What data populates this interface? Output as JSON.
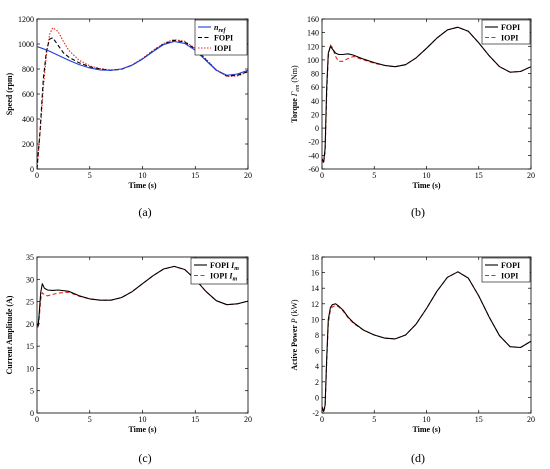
{
  "figure": {
    "captions": [
      "(a)",
      "(b)",
      "(c)",
      "(d)"
    ]
  },
  "colors": {
    "ref": "#1f3fd6",
    "fopi": "#000000",
    "iopi": "#e8261e"
  },
  "chart_data": [
    {
      "type": "line",
      "xlabel": "Time (s)",
      "ylabel": "Speed  (rpm)",
      "xlim": [
        0,
        20
      ],
      "ylim": [
        0,
        1200
      ],
      "xticks": [
        0,
        5,
        10,
        15,
        20
      ],
      "yticks": [
        0,
        200,
        400,
        600,
        800,
        1000,
        1200
      ],
      "grid": false,
      "legend_position": "top-right",
      "series": [
        {
          "name": "n_ref",
          "label_main": "n",
          "label_sub": "ref",
          "style": "solid",
          "color": "#1f3fd6",
          "x": [
            0,
            1,
            2,
            3,
            4,
            5,
            6,
            7,
            8,
            9,
            10,
            11,
            12,
            13,
            14,
            15,
            16,
            17,
            18,
            19,
            20
          ],
          "y": [
            980,
            950,
            910,
            870,
            835,
            808,
            793,
            790,
            800,
            830,
            880,
            940,
            995,
            1020,
            1005,
            950,
            870,
            790,
            750,
            760,
            790
          ]
        },
        {
          "name": "FOPI",
          "label_main": "FOPI",
          "style": "dashed",
          "color": "#000000",
          "x": [
            0,
            0.3,
            0.6,
            0.9,
            1.2,
            1.5,
            2,
            2.5,
            3,
            4,
            5,
            6,
            7,
            8,
            9,
            10,
            11,
            12,
            13,
            14,
            15,
            16,
            17,
            18,
            19,
            20
          ],
          "y": [
            0,
            320,
            720,
            950,
            1040,
            1050,
            990,
            930,
            895,
            850,
            818,
            800,
            790,
            798,
            830,
            880,
            945,
            1000,
            1030,
            1015,
            960,
            875,
            790,
            745,
            750,
            780
          ]
        },
        {
          "name": "IOPI",
          "label_main": "IOPI",
          "style": "dotted",
          "color": "#e8261e",
          "x": [
            0,
            0.3,
            0.6,
            0.9,
            1.2,
            1.5,
            2,
            2.5,
            3,
            4,
            5,
            6,
            7,
            8,
            9,
            10,
            11,
            12,
            13,
            14,
            15,
            16,
            17,
            18,
            19,
            20
          ],
          "y": [
            0,
            300,
            650,
            920,
            1080,
            1130,
            1100,
            1020,
            950,
            870,
            825,
            803,
            792,
            800,
            832,
            885,
            950,
            1005,
            1035,
            1022,
            965,
            880,
            795,
            740,
            745,
            775
          ]
        }
      ]
    },
    {
      "type": "line",
      "xlabel": "Time (s)",
      "ylabel_parts": [
        "Torque",
        "Γ",
        "em",
        "(Nm)"
      ],
      "xlim": [
        0,
        20
      ],
      "ylim": [
        -60,
        160
      ],
      "xticks": [
        0,
        5,
        10,
        15,
        20
      ],
      "yticks": [
        -60,
        -40,
        -20,
        0,
        20,
        40,
        60,
        80,
        100,
        120,
        140,
        160
      ],
      "grid": false,
      "legend_position": "top-right",
      "series": [
        {
          "name": "FOPI",
          "label_main": "FOPI",
          "style": "solid",
          "color": "#000000",
          "x": [
            0,
            0.15,
            0.3,
            0.45,
            0.6,
            0.8,
            1.0,
            1.3,
            1.6,
            2,
            2.5,
            3,
            4,
            5,
            6,
            7,
            8,
            9,
            10,
            11,
            12,
            13,
            14,
            15,
            16,
            17,
            18,
            19,
            20
          ],
          "y": [
            -45,
            -50,
            -30,
            60,
            110,
            120,
            116,
            110,
            108,
            108,
            109,
            107,
            101,
            96,
            92,
            90,
            93,
            103,
            117,
            132,
            144,
            148,
            142,
            125,
            106,
            90,
            82,
            83,
            90
          ]
        },
        {
          "name": "IOPI",
          "label_main": "IOPI",
          "style": "dashed",
          "color": "#e8261e",
          "x": [
            0,
            0.15,
            0.3,
            0.45,
            0.6,
            0.8,
            1.0,
            1.3,
            1.6,
            2,
            2.5,
            3,
            4,
            5,
            6,
            7,
            8,
            9,
            10,
            11,
            12,
            13,
            14,
            15,
            16,
            17,
            18,
            19,
            20
          ],
          "y": [
            -45,
            -52,
            -35,
            50,
            105,
            122,
            118,
            105,
            98,
            98,
            102,
            105,
            100,
            95,
            92,
            90,
            93,
            103,
            117,
            132,
            144,
            148,
            142,
            125,
            106,
            90,
            82,
            83,
            90
          ]
        }
      ]
    },
    {
      "type": "line",
      "xlabel": "Time (s)",
      "ylabel": "Current Amplitude (A)",
      "xlim": [
        0,
        20
      ],
      "ylim": [
        0,
        35
      ],
      "xticks": [
        0,
        5,
        10,
        15,
        20
      ],
      "yticks": [
        0,
        5,
        10,
        15,
        20,
        25,
        30,
        35
      ],
      "grid": false,
      "legend_position": "top-right",
      "series": [
        {
          "name": "FOPI Im",
          "label_main": "FOPI ",
          "label_italic": "I",
          "label_sub": "m",
          "style": "solid",
          "color": "#000000",
          "x": [
            0,
            0.1,
            0.2,
            0.35,
            0.5,
            0.7,
            1.0,
            1.5,
            2,
            3,
            4,
            5,
            6,
            7,
            8,
            9,
            10,
            11,
            12,
            13,
            14,
            15,
            16,
            17,
            18,
            19,
            20
          ],
          "y": [
            20,
            19.5,
            22,
            27,
            29,
            28,
            27.6,
            27.5,
            27.6,
            27.3,
            26.3,
            25.6,
            25.3,
            25.3,
            25.9,
            27.2,
            29,
            30.8,
            32.3,
            32.9,
            32.2,
            30,
            27.3,
            25.2,
            24.3,
            24.5,
            25.1
          ]
        },
        {
          "name": "IOPI Im",
          "label_main": "IOPI ",
          "label_italic": "I",
          "label_sub": "m",
          "style": "dashed",
          "color": "#e8261e",
          "x": [
            0,
            0.1,
            0.2,
            0.35,
            0.5,
            0.7,
            1.0,
            1.5,
            2,
            3,
            4,
            5,
            6,
            7,
            8,
            9,
            10,
            11,
            12,
            13,
            14,
            15,
            16,
            17,
            18,
            19,
            20
          ],
          "y": [
            20,
            19,
            21,
            25.5,
            27,
            26.5,
            26.3,
            26.6,
            26.9,
            27.1,
            26.2,
            25.6,
            25.3,
            25.3,
            25.9,
            27.2,
            29,
            30.8,
            32.3,
            32.9,
            32.2,
            30,
            27.3,
            25.2,
            24.3,
            24.5,
            25.1
          ]
        }
      ]
    },
    {
      "type": "line",
      "xlabel": "Time (s)",
      "ylabel_parts": [
        "Active Power",
        "P",
        "",
        "(kW)"
      ],
      "xlim": [
        0,
        20
      ],
      "ylim": [
        -2,
        18
      ],
      "xticks": [
        0,
        5,
        10,
        15,
        20
      ],
      "yticks": [
        -2,
        0,
        2,
        4,
        6,
        8,
        10,
        12,
        14,
        16,
        18
      ],
      "grid": false,
      "legend_position": "top-right",
      "series": [
        {
          "name": "FOPI",
          "label_main": "FOPI",
          "style": "solid",
          "color": "#000000",
          "x": [
            0,
            0.15,
            0.3,
            0.45,
            0.6,
            0.8,
            1.0,
            1.3,
            1.6,
            2,
            2.5,
            3,
            4,
            5,
            6,
            7,
            8,
            9,
            10,
            11,
            12,
            13,
            14,
            15,
            16,
            17,
            18,
            19,
            20
          ],
          "y": [
            -1.2,
            -1.8,
            -1,
            5,
            10,
            11.5,
            11.9,
            12,
            11.7,
            11.2,
            10.3,
            9.6,
            8.6,
            8,
            7.6,
            7.5,
            8,
            9.4,
            11.4,
            13.6,
            15.4,
            16.1,
            15.3,
            13,
            10.3,
            7.9,
            6.5,
            6.4,
            7.2
          ]
        },
        {
          "name": "IOPI",
          "label_main": "IOPI",
          "style": "dashed",
          "color": "#e8261e",
          "x": [
            0,
            0.15,
            0.3,
            0.45,
            0.6,
            0.8,
            1.0,
            1.3,
            1.6,
            2,
            2.5,
            3,
            4,
            5,
            6,
            7,
            8,
            9,
            10,
            11,
            12,
            13,
            14,
            15,
            16,
            17,
            18,
            19,
            20
          ],
          "y": [
            -1.2,
            -1.9,
            -1.2,
            4.5,
            9.5,
            11.2,
            11.6,
            11.8,
            11.6,
            11.1,
            10.2,
            9.5,
            8.6,
            8,
            7.6,
            7.5,
            8,
            9.4,
            11.4,
            13.6,
            15.4,
            16.1,
            15.3,
            13,
            10.3,
            7.9,
            6.5,
            6.4,
            7.2
          ]
        }
      ]
    }
  ]
}
